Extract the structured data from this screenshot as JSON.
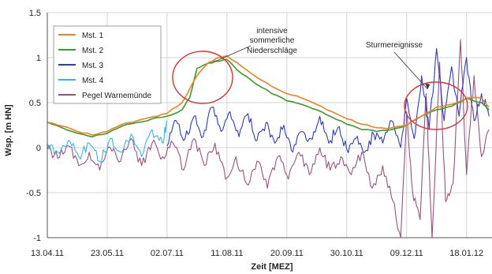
{
  "chart_data": {
    "type": "line",
    "title": "",
    "xlabel": "Zeit [MEZ]",
    "ylabel": "Wsp. [m HN]",
    "ylim": [
      -1,
      1.5
    ],
    "y_ticks": [
      "1.5",
      "1",
      "0.5",
      "0",
      "-0.5",
      "-1"
    ],
    "x_ticks": [
      "13.04.11",
      "23.05.11",
      "02.07.11",
      "11.08.11",
      "20.09.11",
      "30.10.11",
      "09.12.11",
      "18.01.12"
    ],
    "grid": true,
    "legend_position": "top-left",
    "series": [
      {
        "name": "Mst. 1",
        "color": "#f08020",
        "points": [
          [
            "13.04.11",
            0.28
          ],
          [
            "23.04.11",
            0.24
          ],
          [
            "03.05.11",
            0.18
          ],
          [
            "13.05.11",
            0.14
          ],
          [
            "23.05.11",
            0.18
          ],
          [
            "02.06.11",
            0.26
          ],
          [
            "12.06.11",
            0.3
          ],
          [
            "22.06.11",
            0.34
          ],
          [
            "02.07.11",
            0.38
          ],
          [
            "12.07.11",
            0.5
          ],
          [
            "22.07.11",
            0.8
          ],
          [
            "30.07.11",
            0.95
          ],
          [
            "05.08.11",
            1.0
          ],
          [
            "11.08.11",
            1.02
          ],
          [
            "21.08.11",
            0.9
          ],
          [
            "31.08.11",
            0.78
          ],
          [
            "10.09.11",
            0.68
          ],
          [
            "20.09.11",
            0.6
          ],
          [
            "30.09.11",
            0.55
          ],
          [
            "10.10.11",
            0.48
          ],
          [
            "20.10.11",
            0.4
          ],
          [
            "30.10.11",
            0.32
          ],
          [
            "09.11.11",
            0.26
          ],
          [
            "19.11.11",
            0.22
          ],
          [
            "29.11.11",
            0.22
          ],
          [
            "09.12.11",
            0.25
          ],
          [
            "19.12.11",
            0.35
          ],
          [
            "29.12.11",
            0.45
          ],
          [
            "08.01.12",
            0.48
          ],
          [
            "18.01.12",
            0.55
          ],
          [
            "28.01.12",
            0.55
          ],
          [
            "02.02.12",
            0.45
          ]
        ]
      },
      {
        "name": "Mst. 2",
        "color": "#3a9a2a",
        "points": [
          [
            "13.04.11",
            0.28
          ],
          [
            "23.04.11",
            0.22
          ],
          [
            "03.05.11",
            0.16
          ],
          [
            "13.05.11",
            0.12
          ],
          [
            "23.05.11",
            0.16
          ],
          [
            "02.06.11",
            0.24
          ],
          [
            "12.06.11",
            0.28
          ],
          [
            "22.06.11",
            0.32
          ],
          [
            "02.07.11",
            0.35
          ],
          [
            "12.07.11",
            0.42
          ],
          [
            "17.07.11",
            0.55
          ],
          [
            "22.07.11",
            0.88
          ],
          [
            "30.07.11",
            0.94
          ],
          [
            "05.08.11",
            0.96
          ],
          [
            "11.08.11",
            0.98
          ],
          [
            "21.08.11",
            0.82
          ],
          [
            "31.08.11",
            0.7
          ],
          [
            "10.09.11",
            0.6
          ],
          [
            "20.09.11",
            0.52
          ],
          [
            "30.09.11",
            0.48
          ],
          [
            "10.10.11",
            0.42
          ],
          [
            "20.10.11",
            0.34
          ],
          [
            "30.10.11",
            0.26
          ],
          [
            "09.11.11",
            0.2
          ],
          [
            "19.11.11",
            0.18
          ],
          [
            "29.11.11",
            0.2
          ],
          [
            "09.12.11",
            0.25
          ],
          [
            "19.12.11",
            0.35
          ],
          [
            "29.12.11",
            0.42
          ],
          [
            "08.01.12",
            0.46
          ],
          [
            "18.01.12",
            0.55
          ],
          [
            "28.01.12",
            0.5
          ],
          [
            "02.02.12",
            0.42
          ]
        ]
      },
      {
        "name": "Mst. 3",
        "color": "#2a3acb",
        "points": [
          [
            "02.07.11",
            0.02
          ],
          [
            "08.07.11",
            0.3
          ],
          [
            "14.07.11",
            0.1
          ],
          [
            "20.07.11",
            0.35
          ],
          [
            "26.07.11",
            0.12
          ],
          [
            "01.08.11",
            0.45
          ],
          [
            "07.08.11",
            0.18
          ],
          [
            "13.08.11",
            0.4
          ],
          [
            "19.08.11",
            0.12
          ],
          [
            "25.08.11",
            0.38
          ],
          [
            "31.08.11",
            0.08
          ],
          [
            "06.09.11",
            0.28
          ],
          [
            "12.09.11",
            0.05
          ],
          [
            "18.09.11",
            0.25
          ],
          [
            "24.09.11",
            -0.05
          ],
          [
            "30.09.11",
            0.18
          ],
          [
            "06.10.11",
            0.1
          ],
          [
            "12.10.11",
            0.35
          ],
          [
            "18.10.11",
            0.05
          ],
          [
            "24.10.11",
            0.22
          ],
          [
            "30.10.11",
            -0.02
          ],
          [
            "05.11.11",
            0.1
          ],
          [
            "11.11.11",
            -0.05
          ],
          [
            "17.11.11",
            0.15
          ],
          [
            "23.11.11",
            0.05
          ],
          [
            "29.11.11",
            0.3
          ],
          [
            "05.12.11",
            0.0
          ],
          [
            "09.12.11",
            0.55
          ],
          [
            "14.12.11",
            0.1
          ],
          [
            "19.12.11",
            0.8
          ],
          [
            "24.12.11",
            0.2
          ],
          [
            "29.12.11",
            1.1
          ],
          [
            "03.01.12",
            0.3
          ],
          [
            "08.01.12",
            0.9
          ],
          [
            "13.01.12",
            0.35
          ],
          [
            "18.01.12",
            1.0
          ],
          [
            "23.01.12",
            0.3
          ],
          [
            "28.01.12",
            0.6
          ],
          [
            "02.02.12",
            0.35
          ]
        ]
      },
      {
        "name": "Mst. 4",
        "color": "#30b8e8",
        "points": [
          [
            "13.04.11",
            0.05
          ],
          [
            "20.04.11",
            -0.05
          ],
          [
            "27.04.11",
            0.08
          ],
          [
            "04.05.11",
            -0.1
          ],
          [
            "11.05.11",
            0.05
          ],
          [
            "18.05.11",
            -0.15
          ],
          [
            "25.05.11",
            0.1
          ],
          [
            "01.06.11",
            -0.05
          ],
          [
            "08.06.11",
            0.15
          ],
          [
            "15.06.11",
            -0.1
          ],
          [
            "22.06.11",
            0.2
          ],
          [
            "29.06.11",
            0.05
          ],
          [
            "02.07.11",
            0.3
          ]
        ]
      },
      {
        "name": "Pegel Warnemünde",
        "color": "#9a5080",
        "points": [
          [
            "13.04.11",
            -0.02
          ],
          [
            "20.04.11",
            -0.12
          ],
          [
            "27.04.11",
            0.02
          ],
          [
            "04.05.11",
            -0.2
          ],
          [
            "11.05.11",
            -0.05
          ],
          [
            "18.05.11",
            -0.25
          ],
          [
            "25.05.11",
            0.0
          ],
          [
            "01.06.11",
            -0.15
          ],
          [
            "08.06.11",
            0.1
          ],
          [
            "15.06.11",
            -0.2
          ],
          [
            "22.06.11",
            0.05
          ],
          [
            "29.06.11",
            -0.1
          ],
          [
            "06.07.11",
            0.05
          ],
          [
            "13.07.11",
            -0.25
          ],
          [
            "20.07.11",
            0.1
          ],
          [
            "27.07.11",
            -0.2
          ],
          [
            "03.08.11",
            0.05
          ],
          [
            "10.08.11",
            -0.35
          ],
          [
            "17.08.11",
            -0.1
          ],
          [
            "24.08.11",
            -0.4
          ],
          [
            "31.08.11",
            -0.15
          ],
          [
            "07.09.11",
            -0.45
          ],
          [
            "14.09.11",
            -0.1
          ],
          [
            "21.09.11",
            -0.35
          ],
          [
            "28.09.11",
            -0.05
          ],
          [
            "05.10.11",
            -0.3
          ],
          [
            "12.10.11",
            0.0
          ],
          [
            "19.10.11",
            -0.25
          ],
          [
            "26.10.11",
            -0.1
          ],
          [
            "02.11.11",
            -0.3
          ],
          [
            "09.11.11",
            -0.05
          ],
          [
            "16.11.11",
            -0.45
          ],
          [
            "23.11.11",
            -0.2
          ],
          [
            "30.11.11",
            -0.6
          ],
          [
            "05.12.11",
            -1.0
          ],
          [
            "09.12.11",
            0.4
          ],
          [
            "13.12.11",
            -0.5
          ],
          [
            "18.12.11",
            -0.8
          ],
          [
            "22.12.11",
            0.6
          ],
          [
            "26.12.11",
            -1.0
          ],
          [
            "31.12.11",
            0.95
          ],
          [
            "04.01.12",
            -0.6
          ],
          [
            "09.01.12",
            -0.4
          ],
          [
            "14.01.12",
            1.2
          ],
          [
            "18.01.12",
            -0.3
          ],
          [
            "23.01.12",
            0.8
          ],
          [
            "28.01.12",
            -0.1
          ],
          [
            "02.02.12",
            0.2
          ]
        ]
      }
    ],
    "annotations": [
      {
        "lines": [
          "intensive",
          "sommerliche",
          "Niederschläge"
        ],
        "target": [
          "02.08.11",
          0.95
        ]
      },
      {
        "lines": [
          "Sturmereignisse"
        ],
        "target": [
          "23.12.11",
          0.65
        ]
      }
    ]
  }
}
